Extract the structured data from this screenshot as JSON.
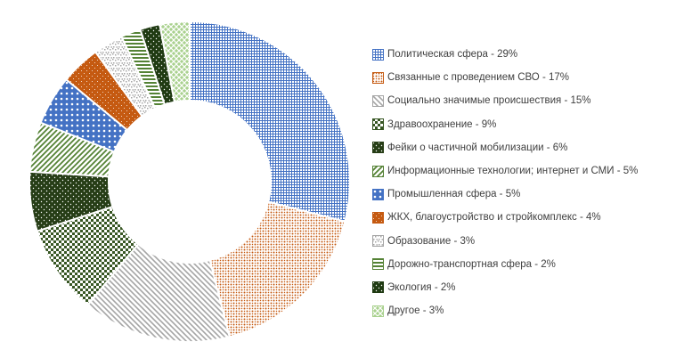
{
  "chart_data": {
    "type": "pie",
    "variant": "donut",
    "title": "",
    "legend_position": "right",
    "slices": [
      {
        "label": "Политическая сфера - 29%",
        "value": 29,
        "color": "#4472c4",
        "pattern": "grid"
      },
      {
        "label": "Связанные с проведением СВО - 17%",
        "value": 17,
        "color": "#c55a11",
        "pattern": "dots"
      },
      {
        "label": "Социально значимые происшествия - 15%",
        "value": 15,
        "color": "#a5a5a5",
        "pattern": "diag-down"
      },
      {
        "label": "Здравоохранение - 9%",
        "value": 9,
        "color": "#375623",
        "pattern": "checker"
      },
      {
        "label": "Фейки о частичной мобилизации - 6%",
        "value": 6,
        "color": "#263d16",
        "pattern": "sparse-dots"
      },
      {
        "label": "Информационные технологии; интернет и СМИ - 5%",
        "value": 5,
        "color": "#548235",
        "pattern": "diag-up"
      },
      {
        "label": "Промышленная сфера - 5%",
        "value": 5,
        "color": "#4472c4",
        "pattern": "large-dots"
      },
      {
        "label": "ЖКХ, благоустройство и стройкомплекс - 4%",
        "value": 4,
        "color": "#c55a11",
        "pattern": "dense-dots"
      },
      {
        "label": "Образование - 3%",
        "value": 3,
        "color": "#a5a5a5",
        "pattern": "confetti"
      },
      {
        "label": "Дорожно-транспортная сфера - 2%",
        "value": 2,
        "color": "#548235",
        "pattern": "horizontal"
      },
      {
        "label": "Экология - 2%",
        "value": 2,
        "color": "#1f3a12",
        "pattern": "sparse-dots"
      },
      {
        "label": "Другое - 3%",
        "value": 3,
        "color": "#a9d18e",
        "pattern": "trellis"
      }
    ]
  }
}
